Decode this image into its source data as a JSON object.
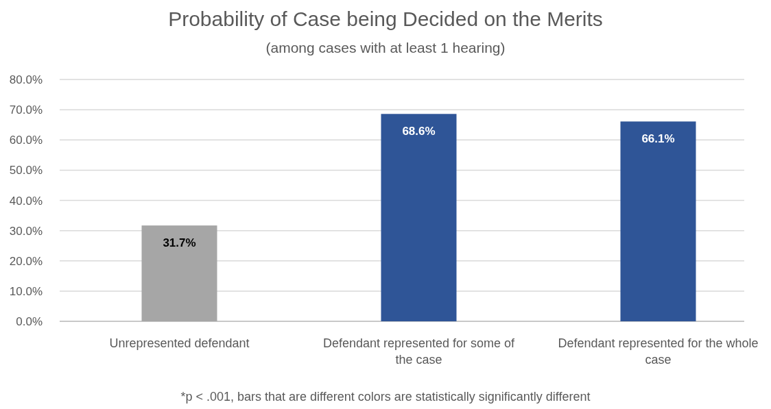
{
  "chart_data": {
    "type": "bar",
    "title": "Probability of Case being Decided on the Merits",
    "subtitle": "(among cases with at least 1 hearing)",
    "categories": [
      "Unrepresented defendant",
      "Defendant represented for some of the case",
      "Defendant represented for the whole case"
    ],
    "values": [
      31.7,
      68.6,
      66.1
    ],
    "colors": [
      "#a6a6a6",
      "#2f5597",
      "#2f5597"
    ],
    "value_labels": [
      "31.7%",
      "68.6%",
      "66.1%"
    ],
    "ylim": [
      0,
      80
    ],
    "yticks": [
      {
        "value": 0,
        "label": "0.0%"
      },
      {
        "value": 10,
        "label": "10.0%"
      },
      {
        "value": 20,
        "label": "20.0%"
      },
      {
        "value": 30,
        "label": "30.0%"
      },
      {
        "value": 40,
        "label": "40.0%"
      },
      {
        "value": 50,
        "label": "50.0%"
      },
      {
        "value": 60,
        "label": "60.0%"
      },
      {
        "value": 70,
        "label": "70.0%"
      },
      {
        "value": 80,
        "label": "80.0%"
      }
    ],
    "grid": "y",
    "annotations": [
      "*p < .001, bars that are different colors are statistically significantly different"
    ]
  }
}
